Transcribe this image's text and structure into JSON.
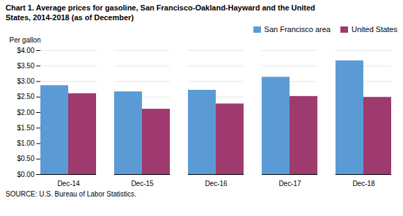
{
  "chart_data": {
    "type": "bar",
    "title": "Chart 1. Average prices for gasoline, San Francisco-Oakland-Hayward and the United",
    "subtitle": "States, 2014-2018  (as of December)",
    "ylabel": "Per gallon",
    "source": "SOURCE: U.S. Bureau of Labor Statistics.",
    "categories": [
      "Dec-14",
      "Dec-15",
      "Dec-16",
      "Dec-17",
      "Dec-18"
    ],
    "series": [
      {
        "name": "San Francisco area",
        "color": "#5B9BD5",
        "values": [
          2.87,
          2.67,
          2.72,
          3.14,
          3.67
        ]
      },
      {
        "name": "United States",
        "color": "#9E3A6E",
        "values": [
          2.61,
          2.11,
          2.28,
          2.52,
          2.49
        ]
      }
    ],
    "ylim": [
      0.0,
      4.0
    ],
    "yticks": [
      {
        "value": 0.0,
        "label": "$0.00"
      },
      {
        "value": 0.5,
        "label": "$0.50"
      },
      {
        "value": 1.0,
        "label": "$1.00"
      },
      {
        "value": 1.5,
        "label": "$1.50"
      },
      {
        "value": 2.0,
        "label": "$2.00"
      },
      {
        "value": 2.5,
        "label": "$2.50"
      },
      {
        "value": 3.0,
        "label": "$3.00"
      },
      {
        "value": 3.5,
        "label": "$3.50"
      },
      {
        "value": 4.0,
        "label": "$4.00"
      }
    ],
    "grid": true,
    "legend": "upper right"
  }
}
